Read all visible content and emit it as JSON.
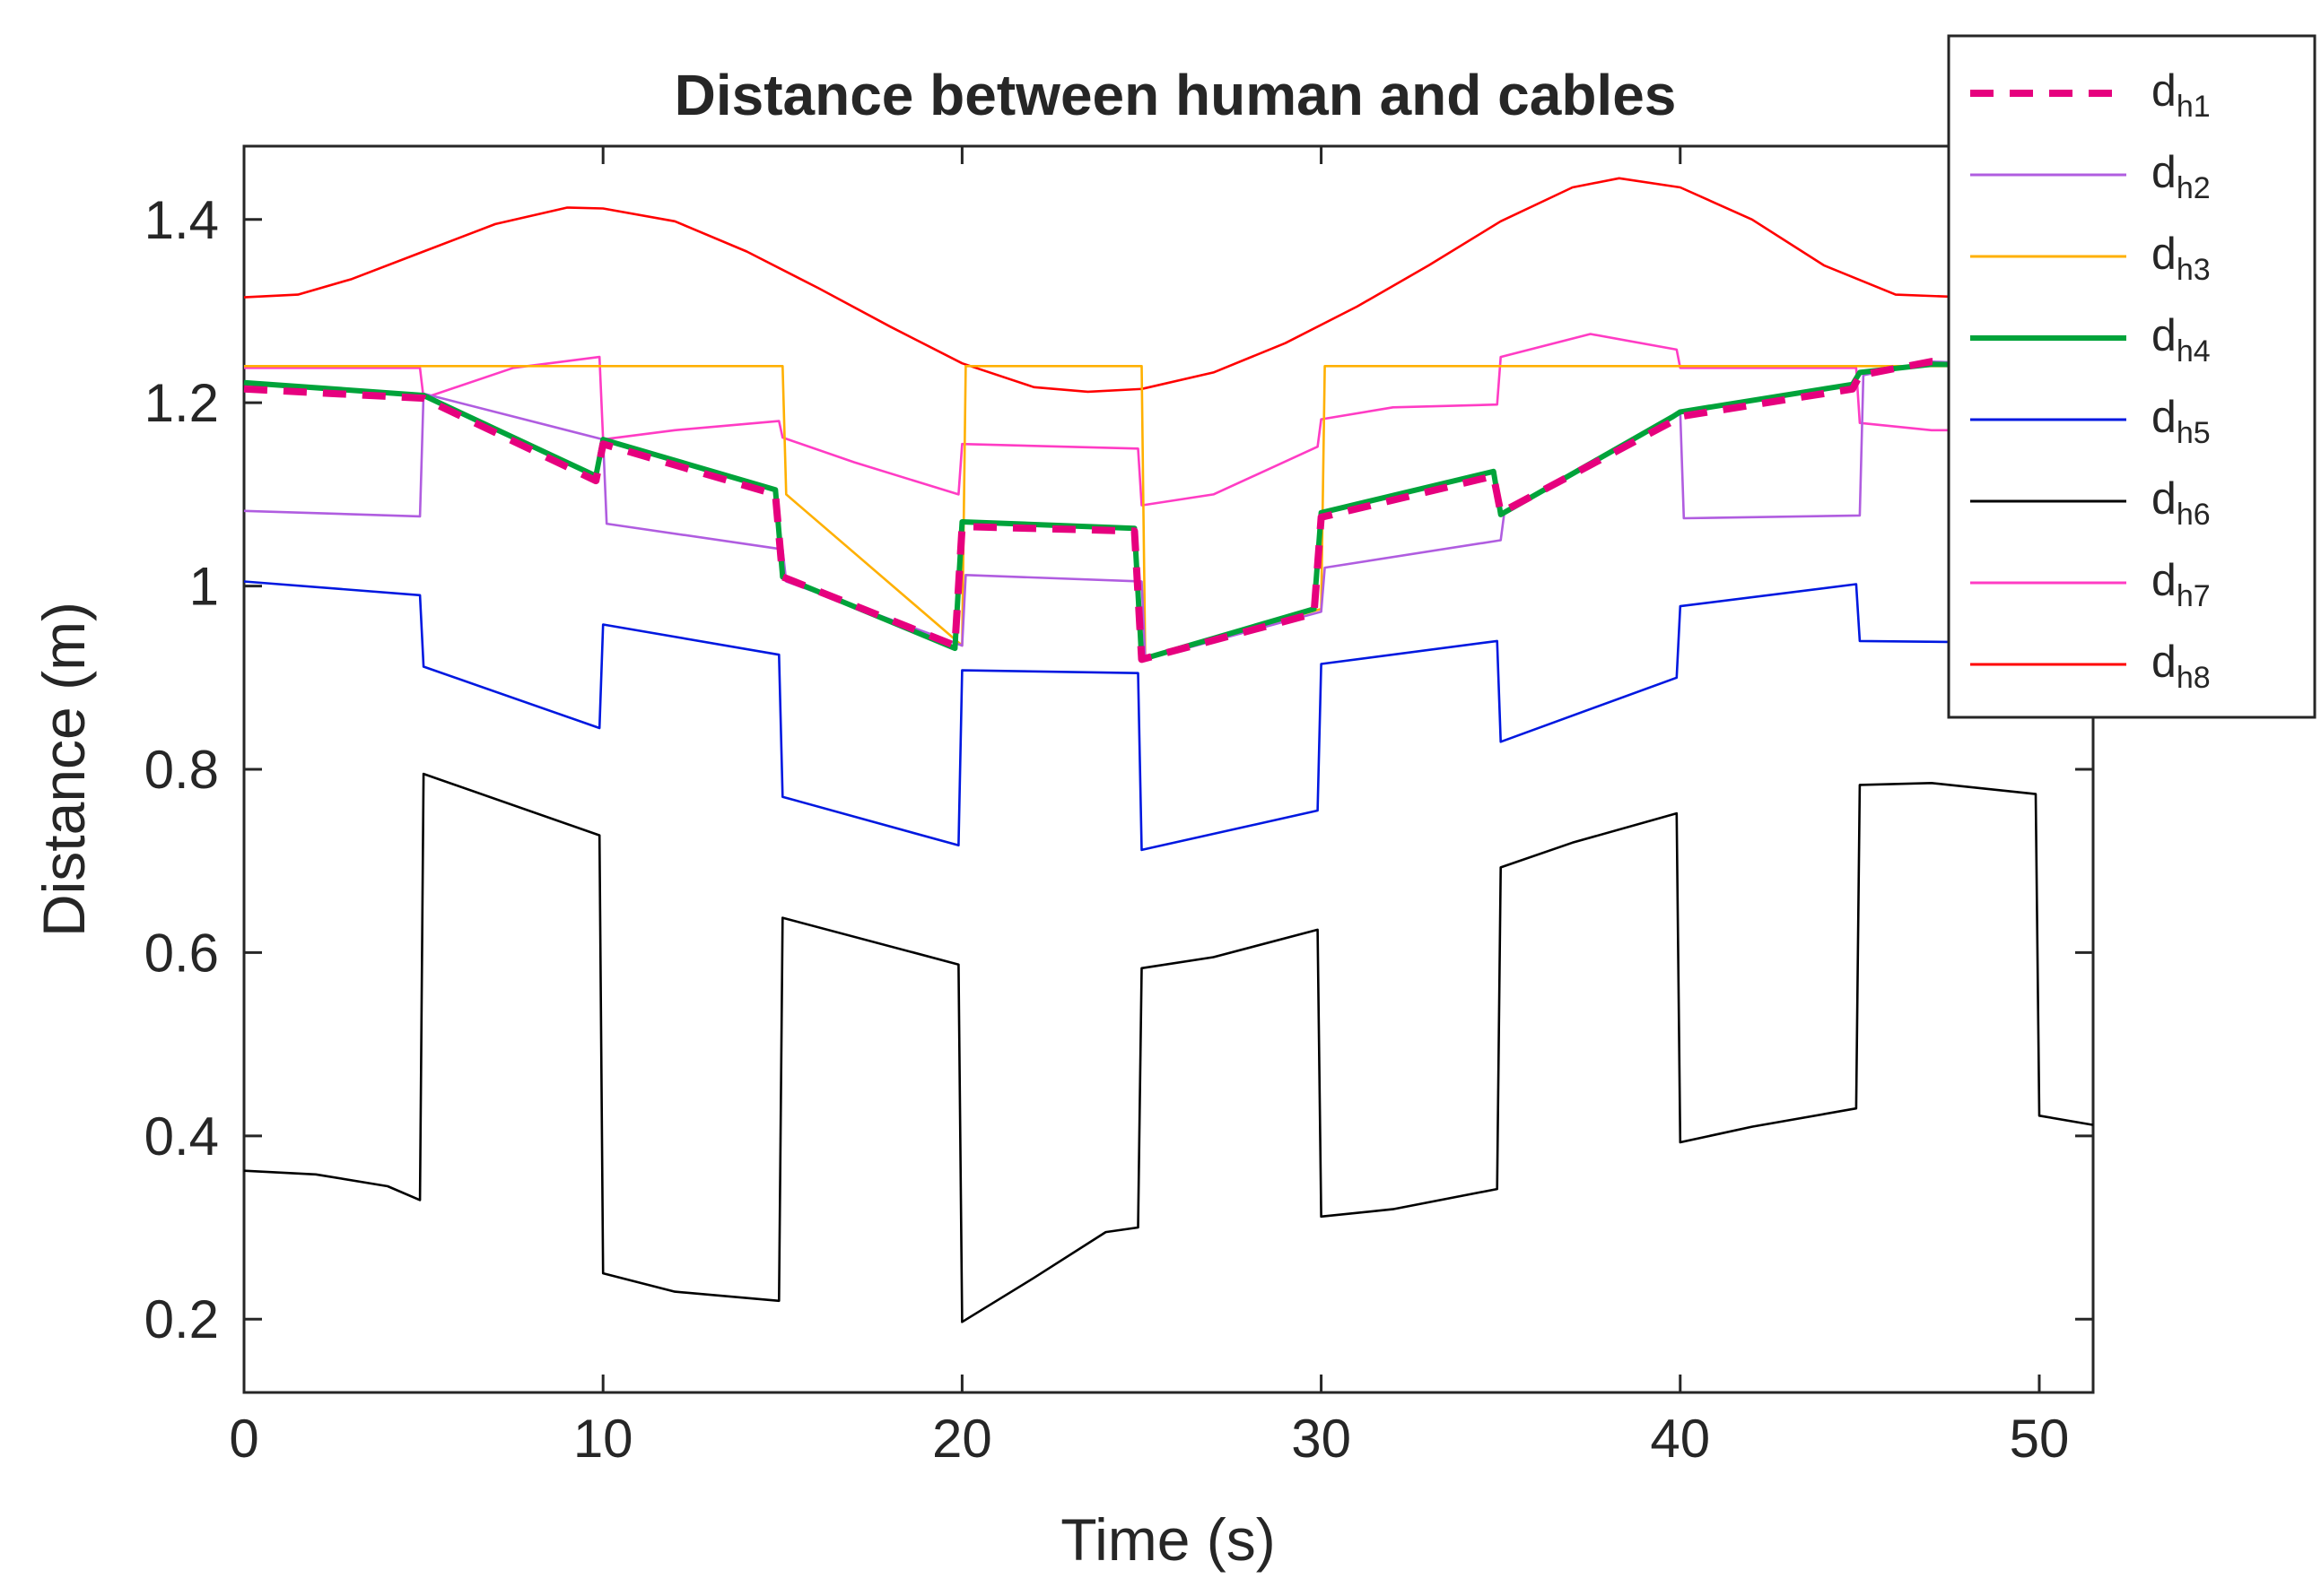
{
  "chart_data": {
    "type": "line",
    "title": "Distance between human and cables",
    "xlabel": "Time (s)",
    "ylabel": "Distance (m)",
    "xlim": [
      0,
      51.5
    ],
    "ylim": [
      0.12,
      1.48
    ],
    "xticks": [
      0,
      10,
      20,
      30,
      40,
      50
    ],
    "yticks": [
      0.2,
      0.4,
      0.6,
      0.8,
      1,
      1.2,
      1.4
    ],
    "xtick_labels": [
      "0",
      "10",
      "20",
      "30",
      "40",
      "50"
    ],
    "ytick_labels": [
      "0.2",
      "0.4",
      "0.6",
      "0.8",
      "1",
      "1.2",
      "1.4"
    ],
    "grid": false,
    "legend_position": "top-right",
    "series": [
      {
        "name": "d",
        "sub": "h1",
        "color": "#e6007e",
        "dashed": true,
        "weight": "thick",
        "points": [
          [
            0,
            1.215
          ],
          [
            5,
            1.205
          ],
          [
            9.8,
            1.115
          ],
          [
            10,
            1.155
          ],
          [
            14.8,
            1.1
          ],
          [
            15,
            1.01
          ],
          [
            19.8,
            0.935
          ],
          [
            20,
            1.065
          ],
          [
            24.8,
            1.06
          ],
          [
            25,
            0.92
          ],
          [
            29.8,
            0.97
          ],
          [
            30,
            1.075
          ],
          [
            34.8,
            1.12
          ],
          [
            35,
            1.08
          ],
          [
            39.8,
            1.18
          ],
          [
            40,
            1.185
          ],
          [
            44.8,
            1.215
          ],
          [
            45,
            1.23
          ],
          [
            47,
            1.245
          ],
          [
            51.5,
            1.24
          ]
        ]
      },
      {
        "name": "d",
        "sub": "h2",
        "color": "#b05de0",
        "dashed": false,
        "weight": "thin",
        "points": [
          [
            0,
            1.082
          ],
          [
            4.9,
            1.076
          ],
          [
            5,
            1.21
          ],
          [
            10,
            1.16
          ],
          [
            10.1,
            1.068
          ],
          [
            15,
            1.04
          ],
          [
            15.1,
            1.005
          ],
          [
            20,
            0.935
          ],
          [
            20.1,
            1.012
          ],
          [
            25,
            1.005
          ],
          [
            25.1,
            0.92
          ],
          [
            30,
            0.972
          ],
          [
            30.1,
            1.02
          ],
          [
            35,
            1.05
          ],
          [
            35.1,
            1.08
          ],
          [
            40,
            1.19
          ],
          [
            40.1,
            1.074
          ],
          [
            45,
            1.077
          ],
          [
            45.1,
            1.23
          ],
          [
            47,
            1.245
          ],
          [
            50,
            1.24
          ],
          [
            51.5,
            1.24
          ]
        ]
      },
      {
        "name": "d",
        "sub": "h3",
        "color": "#ffb000",
        "dashed": false,
        "weight": "thin",
        "points": [
          [
            0,
            1.24
          ],
          [
            5,
            1.24
          ],
          [
            10,
            1.24
          ],
          [
            15,
            1.24
          ],
          [
            15.1,
            1.1
          ],
          [
            20,
            0.935
          ],
          [
            20.1,
            1.24
          ],
          [
            25,
            1.24
          ],
          [
            25.1,
            0.92
          ],
          [
            30,
            0.975
          ],
          [
            30.1,
            1.24
          ],
          [
            35,
            1.24
          ],
          [
            40,
            1.24
          ],
          [
            45,
            1.24
          ],
          [
            51.5,
            1.24
          ]
        ]
      },
      {
        "name": "d",
        "sub": "h4",
        "color": "#00a33a",
        "dashed": false,
        "weight": "thick",
        "points": [
          [
            0,
            1.222
          ],
          [
            5,
            1.208
          ],
          [
            9.8,
            1.12
          ],
          [
            10,
            1.16
          ],
          [
            14.8,
            1.105
          ],
          [
            15,
            1.01
          ],
          [
            19.8,
            0.932
          ],
          [
            20,
            1.07
          ],
          [
            24.8,
            1.063
          ],
          [
            25,
            0.92
          ],
          [
            29.8,
            0.975
          ],
          [
            30,
            1.08
          ],
          [
            34.8,
            1.125
          ],
          [
            35,
            1.078
          ],
          [
            39.8,
            1.185
          ],
          [
            40,
            1.19
          ],
          [
            44.8,
            1.22
          ],
          [
            45,
            1.233
          ],
          [
            47,
            1.242
          ],
          [
            51.5,
            1.24
          ]
        ]
      },
      {
        "name": "d",
        "sub": "h5",
        "color": "#0018e0",
        "dashed": false,
        "weight": "thin",
        "points": [
          [
            0,
            1.005
          ],
          [
            4.9,
            0.99
          ],
          [
            5,
            0.912
          ],
          [
            9.9,
            0.845
          ],
          [
            10,
            0.958
          ],
          [
            14.9,
            0.925
          ],
          [
            15,
            0.77
          ],
          [
            19.9,
            0.717
          ],
          [
            20,
            0.908
          ],
          [
            24.9,
            0.905
          ],
          [
            25,
            0.712
          ],
          [
            29.9,
            0.755
          ],
          [
            30,
            0.915
          ],
          [
            34.9,
            0.94
          ],
          [
            35,
            0.83
          ],
          [
            39.9,
            0.9
          ],
          [
            40,
            0.978
          ],
          [
            44.9,
            1.002
          ],
          [
            45,
            0.94
          ],
          [
            49.9,
            0.938
          ],
          [
            50,
            0.938
          ]
        ]
      },
      {
        "name": "d",
        "sub": "h6",
        "color": "#000000",
        "dashed": false,
        "weight": "thin",
        "points": [
          [
            0,
            0.362
          ],
          [
            2,
            0.358
          ],
          [
            4,
            0.345
          ],
          [
            4.9,
            0.33
          ],
          [
            5,
            0.795
          ],
          [
            9.9,
            0.728
          ],
          [
            10,
            0.25
          ],
          [
            12,
            0.23
          ],
          [
            14.9,
            0.22
          ],
          [
            15,
            0.638
          ],
          [
            19.9,
            0.587
          ],
          [
            20,
            0.197
          ],
          [
            22,
            0.245
          ],
          [
            24,
            0.295
          ],
          [
            24.9,
            0.3
          ],
          [
            25,
            0.583
          ],
          [
            27,
            0.595
          ],
          [
            29.9,
            0.625
          ],
          [
            30,
            0.312
          ],
          [
            32,
            0.32
          ],
          [
            34.9,
            0.342
          ],
          [
            35,
            0.693
          ],
          [
            37,
            0.72
          ],
          [
            39.9,
            0.752
          ],
          [
            40,
            0.393
          ],
          [
            42,
            0.41
          ],
          [
            44.9,
            0.43
          ],
          [
            45,
            0.783
          ],
          [
            47,
            0.785
          ],
          [
            49.9,
            0.773
          ],
          [
            50,
            0.422
          ],
          [
            51.5,
            0.412
          ]
        ]
      },
      {
        "name": "d",
        "sub": "h7",
        "color": "#ff3cc4",
        "dashed": false,
        "weight": "thin",
        "points": [
          [
            0,
            1.238
          ],
          [
            4.9,
            1.238
          ],
          [
            5,
            1.205
          ],
          [
            7.5,
            1.238
          ],
          [
            9.9,
            1.25
          ],
          [
            10,
            1.16
          ],
          [
            12,
            1.17
          ],
          [
            14.9,
            1.18
          ],
          [
            15,
            1.162
          ],
          [
            17,
            1.135
          ],
          [
            19.9,
            1.1
          ],
          [
            20,
            1.155
          ],
          [
            24.9,
            1.15
          ],
          [
            25,
            1.088
          ],
          [
            27,
            1.1
          ],
          [
            29.9,
            1.152
          ],
          [
            30,
            1.182
          ],
          [
            32,
            1.195
          ],
          [
            34.9,
            1.198
          ],
          [
            35,
            1.25
          ],
          [
            37.5,
            1.275
          ],
          [
            39.9,
            1.258
          ],
          [
            40,
            1.238
          ],
          [
            44.9,
            1.238
          ],
          [
            45,
            1.178
          ],
          [
            47,
            1.17
          ],
          [
            50,
            1.17
          ]
        ]
      },
      {
        "name": "d",
        "sub": "h8",
        "color": "#ff0000",
        "dashed": false,
        "weight": "thin",
        "points": [
          [
            0,
            1.315
          ],
          [
            1.5,
            1.318
          ],
          [
            3,
            1.335
          ],
          [
            5,
            1.365
          ],
          [
            7,
            1.395
          ],
          [
            9,
            1.413
          ],
          [
            10,
            1.412
          ],
          [
            12,
            1.398
          ],
          [
            14,
            1.365
          ],
          [
            16,
            1.325
          ],
          [
            18,
            1.283
          ],
          [
            20,
            1.243
          ],
          [
            22,
            1.217
          ],
          [
            23.5,
            1.212
          ],
          [
            25,
            1.215
          ],
          [
            27,
            1.233
          ],
          [
            29,
            1.265
          ],
          [
            31,
            1.305
          ],
          [
            33,
            1.35
          ],
          [
            35,
            1.398
          ],
          [
            37,
            1.435
          ],
          [
            38.3,
            1.445
          ],
          [
            40,
            1.435
          ],
          [
            42,
            1.4
          ],
          [
            44,
            1.35
          ],
          [
            46,
            1.318
          ],
          [
            48,
            1.315
          ],
          [
            51.5,
            1.315
          ]
        ]
      }
    ]
  }
}
